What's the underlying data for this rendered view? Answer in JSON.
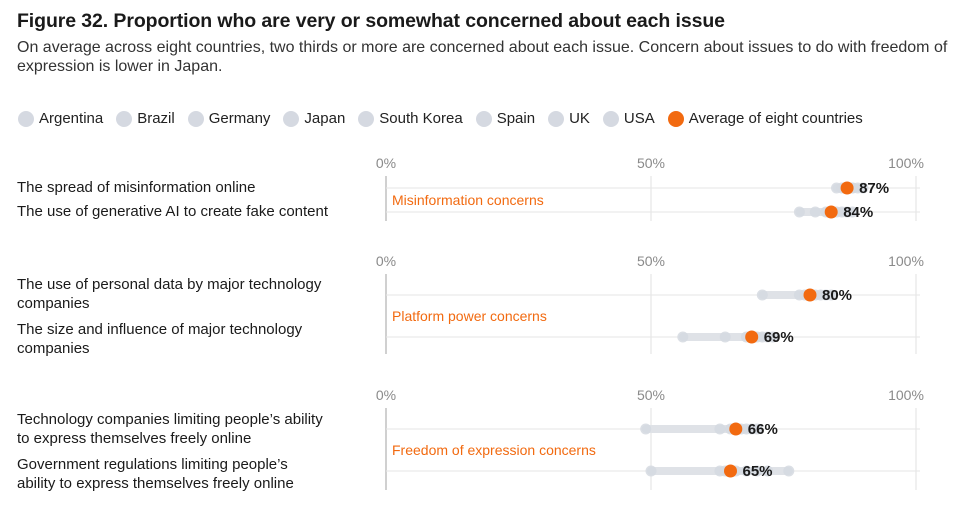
{
  "title": "Figure 32. Proportion who are very or somewhat concerned about each issue",
  "subtitle": "On average across eight countries, two thirds or more are concerned about each issue. Concern about issues to do with freedom of expression is lower in Japan.",
  "colors": {
    "country": "#d5d9e1",
    "average": "#f26a10",
    "group_label": "#f26a10",
    "axis": "#b0b0b0",
    "grid": "#e2e2e2"
  },
  "legend": [
    {
      "label": "Argentina",
      "color": "#d5d9e1"
    },
    {
      "label": "Brazil",
      "color": "#d5d9e1"
    },
    {
      "label": "Germany",
      "color": "#d5d9e1"
    },
    {
      "label": "Japan",
      "color": "#d5d9e1"
    },
    {
      "label": "South Korea",
      "color": "#d5d9e1"
    },
    {
      "label": "Spain",
      "color": "#d5d9e1"
    },
    {
      "label": "UK",
      "color": "#d5d9e1"
    },
    {
      "label": "USA",
      "color": "#d5d9e1"
    },
    {
      "label": "Average of eight countries",
      "color": "#f26a10"
    }
  ],
  "chart_data": {
    "type": "scatter",
    "xlim": [
      0,
      100
    ],
    "tick_values": [
      0,
      50,
      100
    ],
    "tick_labels": [
      "0%",
      "50%",
      "100%"
    ],
    "groups": [
      {
        "label": "Misinformation concerns",
        "items": [
          {
            "label": "The spread of misinformation online",
            "average": 87,
            "average_label": "87%",
            "countries": [
              85,
              86,
              87,
              88,
              89,
              90,
              87,
              88
            ]
          },
          {
            "label": "The use of generative AI to create fake content",
            "average": 84,
            "average_label": "84%",
            "countries": [
              78,
              81,
              83,
              85,
              86,
              87,
              88,
              84
            ]
          }
        ]
      },
      {
        "label": "Platform power concerns",
        "items": [
          {
            "label": "The use of personal data by major technology companies",
            "average": 80,
            "average_label": "80%",
            "countries": [
              71,
              78,
              79,
              80,
              81,
              82,
              83,
              84
            ]
          },
          {
            "label": "The size and influence of major technology companies",
            "average": 69,
            "average_label": "69%",
            "countries": [
              56,
              64,
              68,
              69,
              70,
              71,
              72,
              73
            ]
          }
        ]
      },
      {
        "label": "Freedom of expression concerns",
        "items": [
          {
            "label": "Technology companies limiting people’s ability to express themselves freely online",
            "average": 66,
            "average_label": "66%",
            "countries": [
              49,
              63,
              65,
              66,
              67,
              68,
              69,
              70
            ]
          },
          {
            "label": "Government regulations limiting people’s ability to express themselves freely online",
            "average": 65,
            "average_label": "65%",
            "countries": [
              50,
              63,
              64,
              66,
              68,
              70,
              72,
              76
            ]
          }
        ]
      }
    ]
  }
}
